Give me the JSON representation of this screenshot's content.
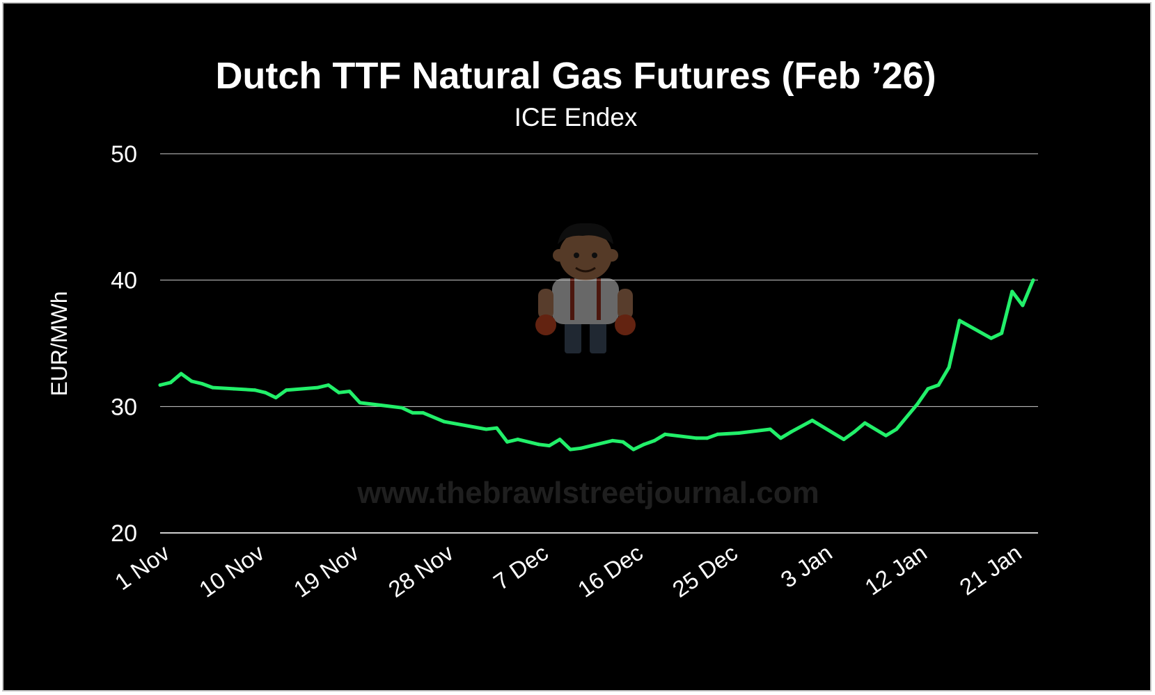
{
  "colors": {
    "background": "#000000",
    "line": "#22f06a",
    "gridline": "#d0d0d0",
    "text": "#ffffff",
    "watermark": "#3a3a3a"
  },
  "watermark": {
    "url": "www.thebrawlstreetjournal.com",
    "mascot_icon": "mascot-icon"
  },
  "chart_data": {
    "type": "line",
    "title": "Dutch TTF Natural Gas Futures (Feb ’26)",
    "subtitle": "ICE Endex",
    "xlabel": "",
    "ylabel": "EUR/MWh",
    "ylim": [
      20,
      50
    ],
    "yticks": [
      20,
      30,
      40,
      50
    ],
    "xtick_labels": [
      "1 Nov",
      "10 Nov",
      "19 Nov",
      "28 Nov",
      "7 Dec",
      "16 Dec",
      "25 Dec",
      "3 Jan",
      "12 Jan",
      "21 Jan"
    ],
    "xtick_dates": [
      "2025-11-01",
      "2025-11-10",
      "2025-11-19",
      "2025-11-28",
      "2025-12-07",
      "2025-12-16",
      "2025-12-25",
      "2026-01-03",
      "2026-01-12",
      "2026-01-21"
    ],
    "grid": true,
    "legend": "none",
    "series": [
      {
        "x": [
          "2025-11-01",
          "2025-11-02",
          "2025-11-03",
          "2025-11-04",
          "2025-11-05",
          "2025-11-06",
          "2025-11-08",
          "2025-11-10",
          "2025-11-11",
          "2025-11-12",
          "2025-11-13",
          "2025-11-16",
          "2025-11-17",
          "2025-11-18",
          "2025-11-19",
          "2025-11-20",
          "2025-11-22",
          "2025-11-24",
          "2025-11-25",
          "2025-11-26",
          "2025-11-28",
          "2025-12-02",
          "2025-12-03",
          "2025-12-04",
          "2025-12-05",
          "2025-12-07",
          "2025-12-08",
          "2025-12-09",
          "2025-12-10",
          "2025-12-11",
          "2025-12-14",
          "2025-12-15",
          "2025-12-16",
          "2025-12-17",
          "2025-12-18",
          "2025-12-19",
          "2025-12-22",
          "2025-12-23",
          "2025-12-24",
          "2025-12-26",
          "2025-12-29",
          "2025-12-30",
          "2025-12-31",
          "2026-01-02",
          "2026-01-05",
          "2026-01-06",
          "2026-01-07",
          "2026-01-09",
          "2026-01-10",
          "2026-01-12",
          "2026-01-13",
          "2026-01-14",
          "2026-01-15",
          "2026-01-16",
          "2026-01-19",
          "2026-01-20",
          "2026-01-21",
          "2026-01-22",
          "2026-01-23"
        ],
        "values": [
          31.7,
          31.9,
          32.6,
          32.0,
          31.8,
          31.5,
          31.4,
          31.3,
          31.1,
          30.7,
          31.3,
          31.5,
          31.7,
          31.1,
          31.2,
          30.3,
          30.1,
          29.9,
          29.5,
          29.5,
          28.8,
          28.2,
          28.3,
          27.2,
          27.4,
          27.0,
          26.9,
          27.4,
          26.6,
          26.7,
          27.3,
          27.2,
          26.6,
          27.0,
          27.3,
          27.8,
          27.5,
          27.5,
          27.8,
          27.9,
          28.2,
          27.5,
          28.0,
          28.9,
          27.4,
          28.0,
          28.7,
          27.7,
          28.2,
          30.2,
          31.4,
          31.7,
          33.1,
          36.8,
          35.4,
          35.8,
          39.1,
          38.0,
          40.0
        ]
      }
    ]
  }
}
